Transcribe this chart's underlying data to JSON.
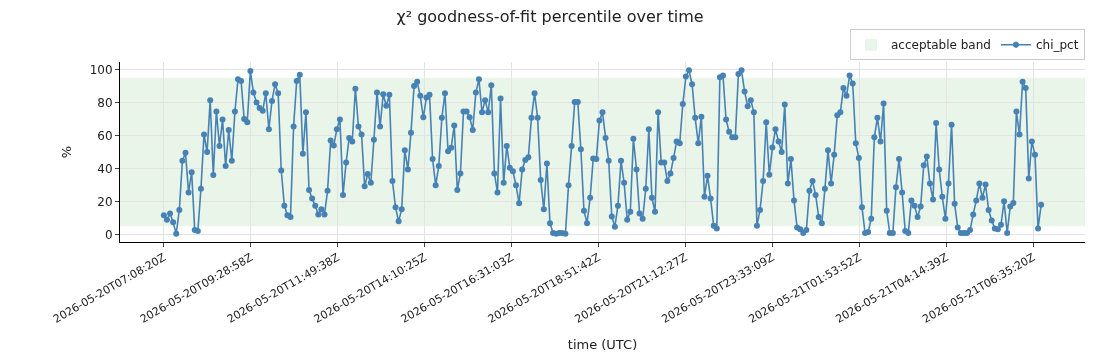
{
  "chart_data": {
    "type": "line",
    "title": "χ² goodness-of-fit percentile over time",
    "xlabel": "time (UTC)",
    "ylabel": "%",
    "xlim": [
      "2026-05-20T05:57:20",
      "2026-05-21T07:59:20"
    ],
    "xticks": [
      {
        "value": "2026-05-20T07:08:20",
        "label": "2026-05-20T07:08:20Z"
      },
      {
        "value": "2026-05-20T09:28:58",
        "label": "2026-05-20T09:28:58Z"
      },
      {
        "value": "2026-05-20T11:49:38",
        "label": "2026-05-20T11:49:38Z"
      },
      {
        "value": "2026-05-20T14:10:25",
        "label": "2026-05-20T14:10:25Z"
      },
      {
        "value": "2026-05-20T16:31:03",
        "label": "2026-05-20T16:31:03Z"
      },
      {
        "value": "2026-05-20T18:51:42",
        "label": "2026-05-20T18:51:42Z"
      },
      {
        "value": "2026-05-20T21:12:27",
        "label": "2026-05-20T21:12:27Z"
      },
      {
        "value": "2026-05-20T23:33:09",
        "label": "2026-05-20T23:33:09Z"
      },
      {
        "value": "2026-05-21T01:53:52",
        "label": "2026-05-21T01:53:52Z"
      },
      {
        "value": "2026-05-21T04:14:39",
        "label": "2026-05-21T04:14:39Z"
      },
      {
        "value": "2026-05-21T06:35:20",
        "label": "2026-05-21T06:35:20Z"
      }
    ],
    "ylim": [
      -4.5,
      104.5
    ],
    "yticks": [
      0,
      20,
      40,
      60,
      80,
      100
    ],
    "grid": true,
    "legend": "top right",
    "marker": "circle",
    "line_style": "solid",
    "bands": [
      {
        "axis": "y",
        "from": 5,
        "to": 95,
        "label": "acceptable band",
        "color": "#2ca02c"
      }
    ],
    "x": [
      "2026-05-20T07:08:20",
      "2026-05-20T07:13:20",
      "2026-05-20T07:18:20",
      "2026-05-20T07:23:20",
      "2026-05-20T07:28:20",
      "2026-05-20T07:33:20",
      "2026-05-20T07:38:20",
      "2026-05-20T07:43:20",
      "2026-05-20T07:48:20",
      "2026-05-20T07:53:20",
      "2026-05-20T07:58:20",
      "2026-05-20T08:03:20",
      "2026-05-20T08:08:20",
      "2026-05-20T08:13:20",
      "2026-05-20T08:18:20",
      "2026-05-20T08:23:20",
      "2026-05-20T08:28:20",
      "2026-05-20T08:33:20",
      "2026-05-20T08:38:20",
      "2026-05-20T08:43:20",
      "2026-05-20T08:48:20",
      "2026-05-20T08:53:20",
      "2026-05-20T08:58:20",
      "2026-05-20T09:03:20",
      "2026-05-20T09:08:20",
      "2026-05-20T09:13:20",
      "2026-05-20T09:18:20",
      "2026-05-20T09:23:20",
      "2026-05-20T09:28:20",
      "2026-05-20T09:33:20",
      "2026-05-20T09:38:20",
      "2026-05-20T09:43:20",
      "2026-05-20T09:48:20",
      "2026-05-20T09:53:20",
      "2026-05-20T09:58:20",
      "2026-05-20T10:03:20",
      "2026-05-20T10:08:20",
      "2026-05-20T10:13:20",
      "2026-05-20T10:18:20",
      "2026-05-20T10:23:20",
      "2026-05-20T10:28:20",
      "2026-05-20T10:33:20",
      "2026-05-20T10:38:20",
      "2026-05-20T10:43:20",
      "2026-05-20T10:48:20",
      "2026-05-20T10:53:20",
      "2026-05-20T10:58:20",
      "2026-05-20T11:03:20",
      "2026-05-20T11:08:20",
      "2026-05-20T11:13:20",
      "2026-05-20T11:18:20",
      "2026-05-20T11:23:20",
      "2026-05-20T11:28:20",
      "2026-05-20T11:33:20",
      "2026-05-20T11:38:20",
      "2026-05-20T11:43:20",
      "2026-05-20T11:48:20",
      "2026-05-20T11:53:20",
      "2026-05-20T11:58:20",
      "2026-05-20T12:03:20",
      "2026-05-20T12:08:20",
      "2026-05-20T12:13:20",
      "2026-05-20T12:18:20",
      "2026-05-20T12:23:20",
      "2026-05-20T12:28:20",
      "2026-05-20T12:33:20",
      "2026-05-20T12:38:20",
      "2026-05-20T12:43:20",
      "2026-05-20T12:48:20",
      "2026-05-20T12:53:20",
      "2026-05-20T12:58:20",
      "2026-05-20T13:03:20",
      "2026-05-20T13:08:20",
      "2026-05-20T13:13:20",
      "2026-05-20T13:18:20",
      "2026-05-20T13:23:20",
      "2026-05-20T13:28:20",
      "2026-05-20T13:33:20",
      "2026-05-20T13:38:20",
      "2026-05-20T13:43:20",
      "2026-05-20T13:48:20",
      "2026-05-20T13:53:20",
      "2026-05-20T13:58:20",
      "2026-05-20T14:03:20",
      "2026-05-20T14:08:20",
      "2026-05-20T14:13:20",
      "2026-05-20T14:18:20",
      "2026-05-20T14:23:20",
      "2026-05-20T14:28:20",
      "2026-05-20T14:33:20",
      "2026-05-20T14:38:20",
      "2026-05-20T14:43:20",
      "2026-05-20T14:48:20",
      "2026-05-20T14:53:20",
      "2026-05-20T14:58:20",
      "2026-05-20T15:03:20",
      "2026-05-20T15:08:20",
      "2026-05-20T15:13:20",
      "2026-05-20T15:18:20",
      "2026-05-20T15:23:20",
      "2026-05-20T15:28:20",
      "2026-05-20T15:33:20",
      "2026-05-20T15:38:20",
      "2026-05-20T15:43:20",
      "2026-05-20T15:48:20",
      "2026-05-20T15:53:20",
      "2026-05-20T15:58:20",
      "2026-05-20T16:03:20",
      "2026-05-20T16:08:20",
      "2026-05-20T16:13:20",
      "2026-05-20T16:18:20",
      "2026-05-20T16:23:20",
      "2026-05-20T16:28:20",
      "2026-05-20T16:33:20",
      "2026-05-20T16:38:20",
      "2026-05-20T16:43:20",
      "2026-05-20T16:48:20",
      "2026-05-20T16:53:20",
      "2026-05-20T16:58:20",
      "2026-05-20T17:03:20",
      "2026-05-20T17:08:20",
      "2026-05-20T17:13:20",
      "2026-05-20T17:18:20",
      "2026-05-20T17:23:20",
      "2026-05-20T17:28:20",
      "2026-05-20T17:33:20",
      "2026-05-20T17:38:20",
      "2026-05-20T17:43:20",
      "2026-05-20T17:48:20",
      "2026-05-20T17:53:20",
      "2026-05-20T17:58:20",
      "2026-05-20T18:03:20",
      "2026-05-20T18:08:20",
      "2026-05-20T18:13:20",
      "2026-05-20T18:18:20",
      "2026-05-20T18:23:20",
      "2026-05-20T18:28:20",
      "2026-05-20T18:33:20",
      "2026-05-20T18:38:20",
      "2026-05-20T18:43:20",
      "2026-05-20T18:48:20",
      "2026-05-20T18:53:20",
      "2026-05-20T18:58:20",
      "2026-05-20T19:03:20",
      "2026-05-20T19:08:20",
      "2026-05-20T19:13:20",
      "2026-05-20T19:18:20",
      "2026-05-20T19:23:20",
      "2026-05-20T19:28:20",
      "2026-05-20T19:33:20",
      "2026-05-20T19:38:20",
      "2026-05-20T19:43:20",
      "2026-05-20T19:48:20",
      "2026-05-20T19:53:20",
      "2026-05-20T19:58:20",
      "2026-05-20T20:03:20",
      "2026-05-20T20:08:20",
      "2026-05-20T20:13:20",
      "2026-05-20T20:18:20",
      "2026-05-20T20:23:20",
      "2026-05-20T20:28:20",
      "2026-05-20T20:33:20",
      "2026-05-20T20:38:20",
      "2026-05-20T20:43:20",
      "2026-05-20T20:48:20",
      "2026-05-20T20:53:20",
      "2026-05-20T20:58:20",
      "2026-05-20T21:03:20",
      "2026-05-20T21:08:20",
      "2026-05-20T21:13:20",
      "2026-05-20T21:18:20",
      "2026-05-20T21:23:20",
      "2026-05-20T21:28:20",
      "2026-05-20T21:33:20",
      "2026-05-20T21:38:20",
      "2026-05-20T21:43:20",
      "2026-05-20T21:48:20",
      "2026-05-20T21:53:20",
      "2026-05-20T21:58:20",
      "2026-05-20T22:03:20",
      "2026-05-20T22:08:20",
      "2026-05-20T22:13:20",
      "2026-05-20T22:18:20",
      "2026-05-20T22:23:20",
      "2026-05-20T22:28:20",
      "2026-05-20T22:33:20",
      "2026-05-20T22:38:20",
      "2026-05-20T22:43:20",
      "2026-05-20T22:48:20",
      "2026-05-20T22:53:20",
      "2026-05-20T22:58:20",
      "2026-05-20T23:03:20",
      "2026-05-20T23:08:20",
      "2026-05-20T23:13:20",
      "2026-05-20T23:18:20",
      "2026-05-20T23:23:20",
      "2026-05-20T23:28:20",
      "2026-05-20T23:33:20",
      "2026-05-20T23:38:20",
      "2026-05-20T23:43:20",
      "2026-05-20T23:48:20",
      "2026-05-20T23:53:20",
      "2026-05-20T23:58:20",
      "2026-05-21T00:03:20",
      "2026-05-21T00:08:20",
      "2026-05-21T00:13:20",
      "2026-05-21T00:18:20",
      "2026-05-21T00:23:20",
      "2026-05-21T00:28:20",
      "2026-05-21T00:33:20",
      "2026-05-21T00:38:20",
      "2026-05-21T00:43:20",
      "2026-05-21T00:48:20",
      "2026-05-21T00:53:20",
      "2026-05-21T00:58:20",
      "2026-05-21T01:03:20",
      "2026-05-21T01:08:20",
      "2026-05-21T01:13:20",
      "2026-05-21T01:18:20",
      "2026-05-21T01:23:20",
      "2026-05-21T01:28:20",
      "2026-05-21T01:33:20",
      "2026-05-21T01:38:20",
      "2026-05-21T01:43:20",
      "2026-05-21T01:48:20",
      "2026-05-21T01:53:20",
      "2026-05-21T01:58:20",
      "2026-05-21T02:03:20",
      "2026-05-21T02:08:20",
      "2026-05-21T02:13:20",
      "2026-05-21T02:18:20",
      "2026-05-21T02:23:20",
      "2026-05-21T02:28:20",
      "2026-05-21T02:33:20",
      "2026-05-21T02:38:20",
      "2026-05-21T02:43:20",
      "2026-05-21T02:48:20",
      "2026-05-21T02:53:20",
      "2026-05-21T02:58:20",
      "2026-05-21T03:03:20",
      "2026-05-21T03:08:20",
      "2026-05-21T03:13:20",
      "2026-05-21T03:18:20",
      "2026-05-21T03:23:20",
      "2026-05-21T03:28:20",
      "2026-05-21T03:33:20",
      "2026-05-21T03:38:20",
      "2026-05-21T03:43:20",
      "2026-05-21T03:48:20",
      "2026-05-21T03:53:20",
      "2026-05-21T03:58:20",
      "2026-05-21T04:03:20",
      "2026-05-21T04:08:20",
      "2026-05-21T04:13:20",
      "2026-05-21T04:18:20",
      "2026-05-21T04:23:20",
      "2026-05-21T04:28:20",
      "2026-05-21T04:33:20",
      "2026-05-21T04:38:20",
      "2026-05-21T04:43:20",
      "2026-05-21T04:48:20",
      "2026-05-21T04:53:20",
      "2026-05-21T04:58:20",
      "2026-05-21T05:03:20",
      "2026-05-21T05:08:20",
      "2026-05-21T05:13:20",
      "2026-05-21T05:18:20",
      "2026-05-21T05:23:20",
      "2026-05-21T05:28:20",
      "2026-05-21T05:33:20",
      "2026-05-21T05:38:20",
      "2026-05-21T05:43:20",
      "2026-05-21T05:48:20",
      "2026-05-21T05:53:20",
      "2026-05-21T05:58:20",
      "2026-05-21T06:03:20",
      "2026-05-21T06:08:20",
      "2026-05-21T06:13:20",
      "2026-05-21T06:18:20",
      "2026-05-21T06:23:20",
      "2026-05-21T06:28:20",
      "2026-05-21T06:33:20",
      "2026-05-21T06:38:20",
      "2026-05-21T06:43:20",
      "2026-05-21T06:48:20"
    ],
    "series": [
      {
        "name": "chi_pct",
        "color": "#4682b4",
        "values": [
          11.7,
          9,
          12.8,
          7.4,
          0.5,
          14.9,
          44.7,
          49.5,
          25.5,
          37.8,
          2.7,
          2.1,
          27.7,
          60.6,
          50,
          81.4,
          36,
          74.5,
          53.7,
          69.7,
          41.5,
          63.3,
          44.7,
          74.5,
          94,
          93,
          70,
          68,
          99,
          86,
          80,
          76.6,
          75,
          85.6,
          63.8,
          80.9,
          91,
          85.6,
          38.8,
          17.5,
          11.7,
          10.6,
          65.5,
          93,
          96.8,
          49,
          74,
          27,
          21.8,
          17.5,
          12.2,
          15.4,
          12.2,
          26.6,
          57,
          54,
          63.8,
          69.7,
          24,
          43.6,
          58.5,
          56.4,
          88.3,
          65.4,
          60.6,
          29.3,
          36.7,
          31.4,
          57.4,
          86,
          65.4,
          85,
          78,
          84.6,
          32.4,
          16.5,
          8,
          15.4,
          51,
          39.4,
          61.7,
          90,
          92.5,
          84,
          71,
          83,
          84.6,
          45.7,
          29.8,
          41.5,
          70.7,
          85.6,
          50.5,
          52.6,
          66,
          27,
          37,
          74.5,
          74.5,
          71,
          63.3,
          86,
          94,
          74,
          81.4,
          74,
          90.4,
          37,
          25.5,
          82.4,
          31.4,
          53.7,
          40.4,
          38.3,
          29.8,
          19,
          39.4,
          45.2,
          46.8,
          70.7,
          85.6,
          70.7,
          33,
          15.4,
          43,
          6.9,
          1,
          0.5,
          1,
          1,
          0.5,
          29.8,
          53.7,
          80.3,
          80.3,
          51.6,
          14.4,
          6.9,
          22.3,
          46,
          45.7,
          69,
          74,
          58.5,
          44.7,
          11,
          4.8,
          17.5,
          44.7,
          31.4,
          9,
          13.8,
          58,
          39.4,
          12.8,
          9.6,
          27.7,
          63.8,
          22.3,
          13.8,
          74,
          43.6,
          43.6,
          32.4,
          37,
          46.3,
          56.4,
          55.3,
          79,
          95.7,
          99.5,
          91,
          70.7,
          55.3,
          71.3,
          22.9,
          35.6,
          21.8,
          5.3,
          3.7,
          95.2,
          96.3,
          69.7,
          62.2,
          59,
          59,
          97.3,
          99.5,
          86.7,
          77.7,
          81.4,
          74,
          5.3,
          14.9,
          32.4,
          68,
          36.2,
          52.7,
          63.8,
          56.4,
          50,
          78.7,
          30.9,
          45.7,
          20.7,
          4.3,
          3.2,
          1,
          2.7,
          26.6,
          32.4,
          24,
          10.6,
          6.9,
          27.7,
          51,
          30.9,
          48.4,
          72.3,
          74,
          88.8,
          84,
          96.3,
          91.5,
          55.3,
          46.3,
          16.5,
          1,
          1.6,
          9.6,
          59,
          70.7,
          56.4,
          79.3,
          14.4,
          1,
          1,
          28.7,
          45.7,
          25.5,
          2.1,
          1,
          20.7,
          17.5,
          10.6,
          17,
          42,
          47.3,
          30.9,
          21.3,
          67.6,
          39.4,
          22.9,
          9.6,
          30.9,
          66.5,
          18.6,
          4.3,
          1,
          1,
          1,
          2.7,
          12.2,
          20.7,
          30.9,
          22.3,
          30.3,
          14.9,
          8.5,
          3.7,
          3.2,
          5.9,
          20.2,
          1,
          17,
          19.1,
          74.5,
          60.6,
          92.5,
          88.8,
          34,
          56.4,
          48.4,
          3.7,
          18
        ]
      }
    ]
  }
}
